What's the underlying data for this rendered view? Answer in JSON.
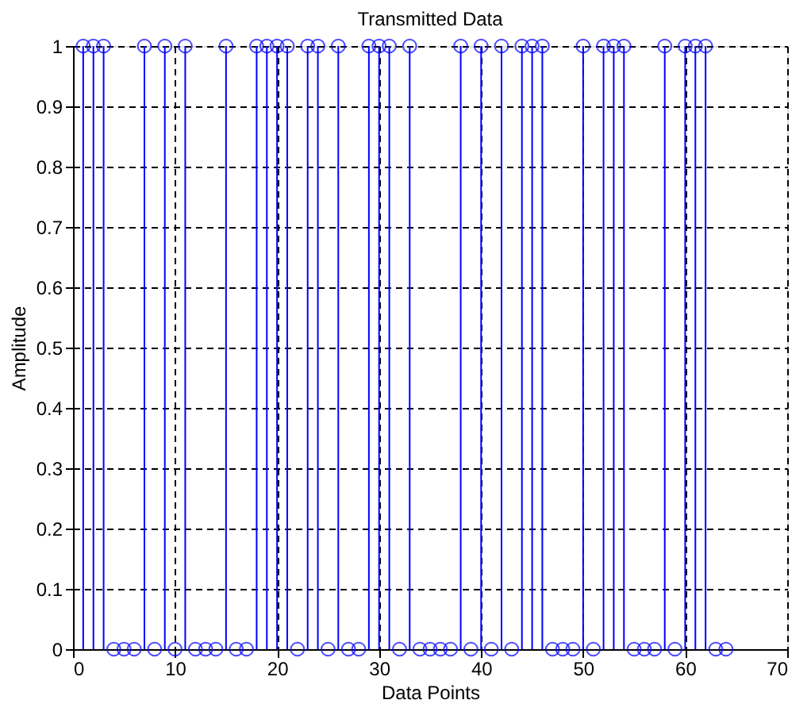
{
  "chart_data": {
    "type": "lollipop",
    "title": "Transmitted Data",
    "xlabel": "Data Points",
    "ylabel": "Amplitude",
    "x": [
      1,
      2,
      3,
      4,
      5,
      6,
      7,
      8,
      9,
      10,
      11,
      12,
      13,
      14,
      15,
      16,
      17,
      18,
      19,
      20,
      21,
      22,
      23,
      24,
      25,
      26,
      27,
      28,
      29,
      30,
      31,
      32,
      33,
      34,
      35,
      36,
      37,
      38,
      39,
      40,
      41,
      42,
      43,
      44,
      45,
      46,
      47,
      48,
      49,
      50,
      51,
      52,
      53,
      54,
      55,
      56,
      57,
      58,
      59,
      60,
      61,
      62,
      63,
      64
    ],
    "series": [
      {
        "color": "#0000ff",
        "values": [
          1,
          1,
          1,
          0,
          0,
          0,
          1,
          0,
          1,
          0,
          1,
          0,
          0,
          0,
          1,
          0,
          0,
          1,
          1,
          1,
          1,
          0,
          1,
          1,
          0,
          1,
          0,
          0,
          1,
          1,
          1,
          0,
          1,
          0,
          0,
          0,
          0,
          1,
          0,
          1,
          0,
          1,
          0,
          1,
          1,
          1,
          0,
          0,
          0,
          1,
          0,
          1,
          1,
          1,
          0,
          0,
          0,
          1,
          0,
          1,
          1,
          1,
          0,
          0
        ]
      }
    ],
    "marker": "circle",
    "line_style": "solid",
    "xlim": [
      0,
      70
    ],
    "xticks": [
      0,
      10,
      20,
      30,
      40,
      50,
      60,
      70
    ],
    "ylim": [
      0,
      1
    ],
    "yticks": [
      0,
      0.1,
      0.2,
      0.3,
      0.4,
      0.5,
      0.6,
      0.7,
      0.8,
      0.9,
      1
    ],
    "grid": true
  }
}
